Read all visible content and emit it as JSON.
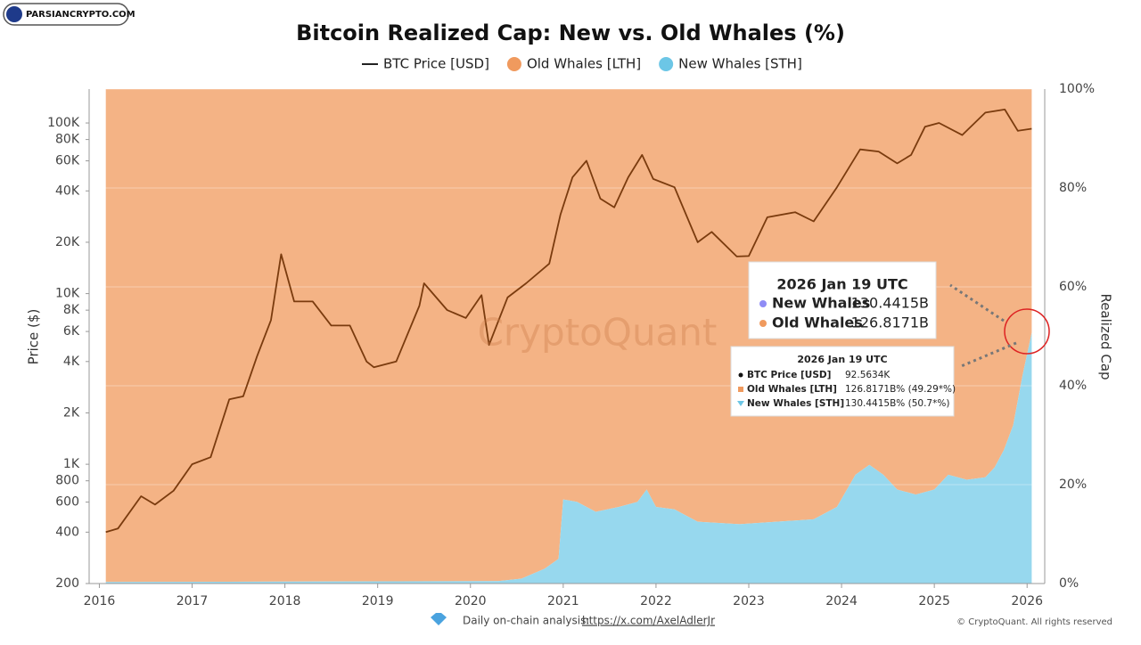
{
  "chart_data": {
    "type": "area",
    "title": "Bitcoin Realized Cap: New vs. Old Whales (%)",
    "y_label": "Price ($)",
    "y2_label": "Realized Cap",
    "logo": "PARSIANCRYPTO.COM",
    "watermark": "CryptoQuant",
    "footer": "Daily on-chain analysis:",
    "footer_link": "https://x.com/AxelAdlerJr",
    "copyright": "© CryptoQuant. All rights reserved",
    "ylog": true,
    "grid": true,
    "xlim": [
      2015.89,
      2026.19
    ],
    "xticks": [
      2016,
      2017,
      2018,
      2019,
      2020,
      2021,
      2022,
      2023,
      2024,
      2025,
      2026
    ],
    "ylim": [
      200,
      158000
    ],
    "yticks": [
      200,
      400,
      600,
      800,
      {
        "value": 1000,
        "label": "1K"
      },
      {
        "value": 2000,
        "label": "2K"
      },
      {
        "value": 4000,
        "label": "4K"
      },
      {
        "value": 6000,
        "label": "6K"
      },
      {
        "value": 8000,
        "label": "8K"
      },
      {
        "value": 10000,
        "label": "10K"
      },
      {
        "value": 20000,
        "label": "20K"
      },
      {
        "value": 40000,
        "label": "40K"
      },
      {
        "value": 60000,
        "label": "60K"
      },
      {
        "value": 80000,
        "label": "80K"
      },
      {
        "value": 100000,
        "label": "100K"
      }
    ],
    "y2lim": [
      0,
      100
    ],
    "y2ticks": [
      {
        "value": 0,
        "label": "0%"
      },
      {
        "value": 20,
        "label": "20%"
      },
      {
        "value": 40,
        "label": "40%"
      },
      {
        "value": 60,
        "label": "60%"
      },
      {
        "value": 80,
        "label": "80%"
      },
      {
        "value": 100,
        "label": "100%"
      }
    ],
    "series": [
      {
        "name": "BTC Price [USD]",
        "kind": "line",
        "axis": "y",
        "color": "#7a3b0e",
        "x": [
          2016.07,
          2016.2,
          2016.45,
          2016.6,
          2016.8,
          2017.0,
          2017.2,
          2017.4,
          2017.55,
          2017.7,
          2017.85,
          2017.96,
          2018.1,
          2018.3,
          2018.5,
          2018.7,
          2018.88,
          2018.96,
          2019.2,
          2019.45,
          2019.5,
          2019.75,
          2019.95,
          2020.12,
          2020.2,
          2020.4,
          2020.6,
          2020.85,
          2020.97,
          2021.1,
          2021.25,
          2021.4,
          2021.55,
          2021.7,
          2021.85,
          2021.97,
          2022.2,
          2022.45,
          2022.6,
          2022.87,
          2023.0,
          2023.2,
          2023.5,
          2023.7,
          2023.95,
          2024.2,
          2024.4,
          2024.6,
          2024.75,
          2024.9,
          2025.05,
          2025.3,
          2025.55,
          2025.76,
          2025.9,
          2026.05
        ],
        "values": [
          400,
          420,
          650,
          580,
          700,
          1000,
          1100,
          2400,
          2500,
          4300,
          7000,
          17000,
          9000,
          9000,
          6500,
          6500,
          4000,
          3700,
          4000,
          8500,
          11500,
          8000,
          7200,
          9800,
          5000,
          9500,
          11500,
          15000,
          29000,
          48000,
          60000,
          36000,
          32000,
          48000,
          65000,
          47000,
          42000,
          20000,
          23000,
          16500,
          16600,
          28000,
          30000,
          26500,
          42000,
          70000,
          68000,
          58000,
          65000,
          95000,
          100000,
          85000,
          115000,
          120000,
          90000,
          92500
        ]
      },
      {
        "name": "New Whales [STH]",
        "kind": "area",
        "axis": "y2",
        "color": "#97d8ee",
        "legend_color": "#6cc6e6",
        "x": [
          2016.07,
          2020.3,
          2020.55,
          2020.8,
          2020.95,
          2021.0,
          2021.15,
          2021.35,
          2021.6,
          2021.8,
          2021.9,
          2022.0,
          2022.2,
          2022.45,
          2022.9,
          2023.3,
          2023.7,
          2023.95,
          2024.15,
          2024.3,
          2024.45,
          2024.6,
          2024.8,
          2025.0,
          2025.15,
          2025.35,
          2025.55,
          2025.65,
          2025.75,
          2025.85,
          2025.95,
          2026.05
        ],
        "values": [
          0.3,
          0.5,
          1,
          3,
          5,
          17,
          16.5,
          14.5,
          15.5,
          16.5,
          19,
          15.5,
          15,
          12.5,
          12,
          12.5,
          13,
          15.5,
          22,
          24,
          22,
          19,
          18,
          19,
          22,
          21,
          21.5,
          23.5,
          27,
          32,
          42,
          50.7
        ]
      },
      {
        "name": "Old Whales [LTH]",
        "kind": "area",
        "axis": "y2",
        "color": "#f4b385",
        "legend_color": "#f09a5e",
        "x": [
          2016.07,
          2020.3,
          2020.55,
          2020.8,
          2020.95,
          2021.0,
          2021.15,
          2021.35,
          2021.6,
          2021.8,
          2021.9,
          2022.0,
          2022.2,
          2022.45,
          2022.9,
          2023.3,
          2023.7,
          2023.95,
          2024.15,
          2024.3,
          2024.45,
          2024.6,
          2024.8,
          2025.0,
          2025.15,
          2025.35,
          2025.55,
          2025.65,
          2025.75,
          2025.85,
          2025.95,
          2026.05
        ],
        "values": [
          99.7,
          99.5,
          99,
          97,
          95,
          83,
          83.5,
          85.5,
          84.5,
          83.5,
          81,
          84.5,
          85,
          87.5,
          88,
          87.5,
          87,
          84.5,
          78,
          76,
          78,
          81,
          82,
          81,
          78,
          79,
          78.5,
          76.5,
          73,
          68,
          58,
          49.3
        ]
      }
    ],
    "legend_order": [
      0,
      2,
      1
    ],
    "tooltip_large": {
      "date": "2026 Jan 19 UTC",
      "rows": [
        [
          "New Whales",
          "130.4415B"
        ],
        [
          "Old Whales",
          "126.8171B"
        ]
      ]
    },
    "tooltip_small": {
      "date": "2026 Jan 19 UTC",
      "rows": [
        [
          "BTC Price [USD]",
          "92.5634K"
        ],
        [
          "Old Whales [LTH]",
          "126.8171B% (49.29*%)"
        ],
        [
          "New Whales [STH]",
          "130.4415B% (50.7*%)"
        ]
      ]
    }
  }
}
